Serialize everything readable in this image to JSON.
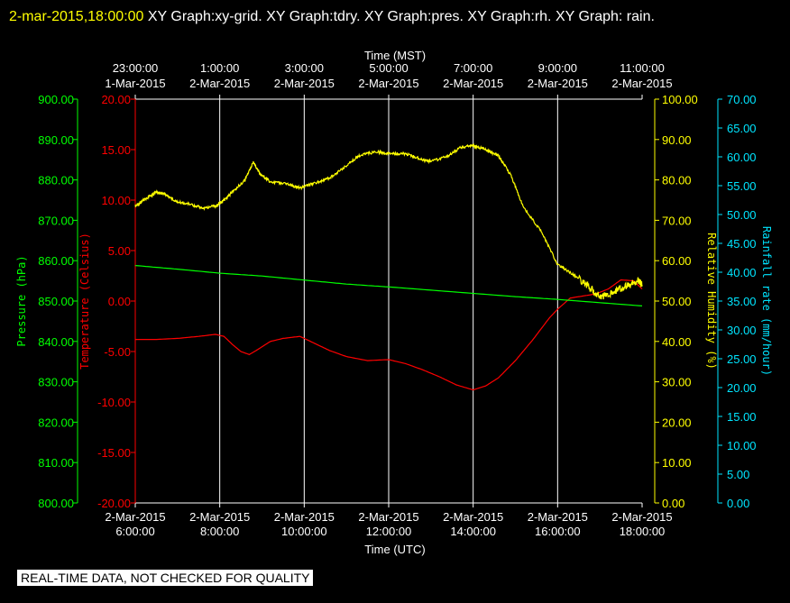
{
  "header": {
    "timestamp": "2-mar-2015,18:00:00",
    "graphs": "  XY Graph:xy-grid.  XY Graph:tdry.  XY Graph:pres.  XY Graph:rh.  XY Graph: rain."
  },
  "footer_note": "REAL-TIME DATA, NOT CHECKED FOR QUALITY",
  "chart_data": {
    "type": "line",
    "xlabel": "Time (UTC)",
    "top_xlabel": "Time (MST)",
    "x_range": [
      "2-Mar-2015 06:00:00",
      "2-Mar-2015 18:00:00"
    ],
    "grid": true,
    "bottom_ticks": [
      {
        "date": "2-Mar-2015",
        "time": "6:00:00"
      },
      {
        "date": "2-Mar-2015",
        "time": "8:00:00"
      },
      {
        "date": "2-Mar-2015",
        "time": "10:00:00"
      },
      {
        "date": "2-Mar-2015",
        "time": "12:00:00"
      },
      {
        "date": "2-Mar-2015",
        "time": "14:00:00"
      },
      {
        "date": "2-Mar-2015",
        "time": "16:00:00"
      },
      {
        "date": "2-Mar-2015",
        "time": "18:00:00"
      }
    ],
    "top_ticks": [
      {
        "time": "23:00:00",
        "date": "1-Mar-2015"
      },
      {
        "time": "1:00:00",
        "date": "2-Mar-2015"
      },
      {
        "time": "3:00:00",
        "date": "2-Mar-2015"
      },
      {
        "time": "5:00:00",
        "date": "2-Mar-2015"
      },
      {
        "time": "7:00:00",
        "date": "2-Mar-2015"
      },
      {
        "time": "9:00:00",
        "date": "2-Mar-2015"
      },
      {
        "time": "11:00:00",
        "date": "2-Mar-2015"
      }
    ],
    "axes": {
      "pressure": {
        "label": "Pressure (hPa)",
        "color": "#00ff00",
        "range": [
          800,
          900
        ],
        "ticks": [
          "900.00",
          "890.00",
          "880.00",
          "870.00",
          "860.00",
          "850.00",
          "840.00",
          "830.00",
          "820.00",
          "810.00",
          "800.00"
        ]
      },
      "temperature": {
        "label": "Temperature (Celsius)",
        "color": "#ff0000",
        "range": [
          -20,
          20
        ],
        "ticks": [
          "20.00",
          "15.00",
          "10.00",
          "5.00",
          "0.00",
          "-5.00",
          "-10.00",
          "-15.00",
          "-20.00"
        ]
      },
      "humidity": {
        "label": "Relative Humidity (%)",
        "color": "#ffff00",
        "range": [
          0,
          100
        ],
        "ticks": [
          "100.00",
          "90.00",
          "80.00",
          "70.00",
          "60.00",
          "50.00",
          "40.00",
          "30.00",
          "20.00",
          "10.00",
          "0.00"
        ]
      },
      "rain": {
        "label": "Rainfall rate (mm/hour)",
        "color": "#00e5ff",
        "range": [
          0,
          70
        ],
        "ticks": [
          "70.00",
          "65.00",
          "60.00",
          "55.00",
          "50.00",
          "45.00",
          "40.00",
          "35.00",
          "30.00",
          "25.00",
          "20.00",
          "15.00",
          "10.00",
          "5.00",
          "0.00"
        ]
      }
    },
    "series": [
      {
        "name": "tdry",
        "axis": "temperature",
        "color": "#ff0000",
        "x": [
          6.0,
          6.5,
          7.0,
          7.5,
          7.9,
          8.1,
          8.3,
          8.5,
          8.7,
          8.9,
          9.2,
          9.5,
          9.9,
          10.2,
          10.6,
          11.0,
          11.5,
          12.0,
          12.4,
          12.8,
          13.2,
          13.6,
          14.0,
          14.3,
          14.6,
          15.0,
          15.4,
          15.8,
          16.0,
          16.3,
          16.6,
          16.9,
          17.2,
          17.5,
          17.8,
          18.0
        ],
        "y": [
          -3.8,
          -3.8,
          -3.7,
          -3.5,
          -3.3,
          -3.5,
          -4.3,
          -5.0,
          -5.3,
          -4.8,
          -4.0,
          -3.7,
          -3.5,
          -4.1,
          -4.9,
          -5.5,
          -5.9,
          -5.8,
          -6.2,
          -6.8,
          -7.5,
          -8.3,
          -8.8,
          -8.4,
          -7.6,
          -5.9,
          -3.9,
          -1.7,
          -0.8,
          0.3,
          0.5,
          0.7,
          1.2,
          2.1,
          2.0,
          1.2
        ]
      },
      {
        "name": "pres",
        "axis": "pressure",
        "color": "#00ff00",
        "x": [
          6.0,
          7.0,
          8.0,
          9.0,
          10.0,
          11.0,
          12.0,
          13.0,
          14.0,
          15.0,
          16.0,
          17.0,
          18.0
        ],
        "y": [
          858.8,
          857.9,
          856.9,
          856.2,
          855.2,
          854.2,
          853.5,
          852.7,
          851.9,
          851.1,
          850.4,
          849.6,
          848.8
        ]
      },
      {
        "name": "rh",
        "axis": "humidity",
        "color": "#ffff00",
        "x": [
          6.0,
          6.2,
          6.5,
          6.7,
          7.0,
          7.3,
          7.6,
          7.9,
          8.1,
          8.3,
          8.6,
          8.8,
          8.95,
          9.2,
          9.6,
          9.9,
          10.2,
          10.6,
          11.0,
          11.3,
          11.7,
          12.0,
          12.4,
          12.8,
          13.0,
          13.4,
          13.7,
          14.0,
          14.3,
          14.6,
          14.9,
          15.2,
          15.6,
          16.0,
          16.3,
          16.7,
          17.0,
          17.3,
          17.6,
          17.9,
          18.0
        ],
        "y": [
          73.5,
          75.0,
          77.0,
          76.5,
          74.5,
          74.0,
          73.0,
          73.5,
          75.0,
          77.0,
          80.0,
          84.5,
          81.5,
          79.5,
          79.0,
          78.0,
          79.0,
          80.5,
          83.5,
          86.0,
          87.0,
          86.5,
          86.5,
          85.0,
          84.5,
          86.0,
          88.0,
          88.5,
          87.5,
          86.0,
          81.0,
          73.0,
          67.5,
          59.0,
          57.0,
          54.0,
          51.0,
          52.0,
          53.5,
          55.0,
          54.0
        ]
      },
      {
        "name": "rain",
        "axis": "rain",
        "color": "#00e5ff",
        "x": [
          6.0,
          18.0
        ],
        "y": [
          0,
          0
        ]
      }
    ]
  }
}
